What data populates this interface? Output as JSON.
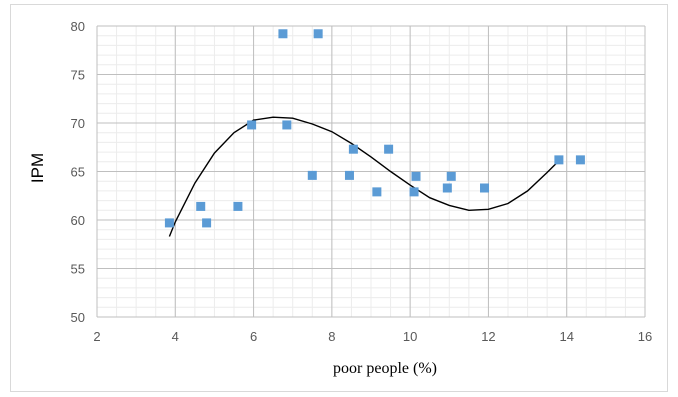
{
  "chart_data": {
    "type": "scatter",
    "title": "",
    "xlabel": "poor people (%)",
    "ylabel": "IPM",
    "xlim": [
      2,
      16
    ],
    "ylim": [
      50,
      80
    ],
    "x_ticks": [
      2,
      4,
      6,
      8,
      10,
      12,
      14,
      16
    ],
    "y_ticks": [
      50,
      55,
      60,
      65,
      70,
      75,
      80
    ],
    "grid": true,
    "legend": "none",
    "marker_color": "#5b9bd5",
    "trendline_color": "#000000",
    "points": [
      {
        "x": 3.85,
        "y": 59.7
      },
      {
        "x": 4.65,
        "y": 61.4
      },
      {
        "x": 4.8,
        "y": 59.7
      },
      {
        "x": 5.6,
        "y": 61.4
      },
      {
        "x": 5.95,
        "y": 69.8
      },
      {
        "x": 6.75,
        "y": 79.2
      },
      {
        "x": 6.85,
        "y": 69.8
      },
      {
        "x": 7.5,
        "y": 64.6
      },
      {
        "x": 7.65,
        "y": 79.2
      },
      {
        "x": 8.45,
        "y": 64.6
      },
      {
        "x": 8.55,
        "y": 67.3
      },
      {
        "x": 9.15,
        "y": 62.9
      },
      {
        "x": 9.45,
        "y": 67.3
      },
      {
        "x": 10.1,
        "y": 62.9
      },
      {
        "x": 10.15,
        "y": 64.5
      },
      {
        "x": 10.95,
        "y": 63.3
      },
      {
        "x": 11.05,
        "y": 64.5
      },
      {
        "x": 11.9,
        "y": 63.3
      },
      {
        "x": 13.8,
        "y": 66.2
      },
      {
        "x": 14.35,
        "y": 66.2
      }
    ],
    "trendline": {
      "type": "polynomial",
      "order": 3,
      "x": [
        3.85,
        4.0,
        4.5,
        5.0,
        5.5,
        6.0,
        6.5,
        7.0,
        7.5,
        8.0,
        8.5,
        9.0,
        9.5,
        10.0,
        10.5,
        11.0,
        11.5,
        12.0,
        12.5,
        13.0,
        13.5,
        13.8
      ],
      "y": [
        58.3,
        59.8,
        63.8,
        66.9,
        69.0,
        70.3,
        70.6,
        70.5,
        69.9,
        69.1,
        67.9,
        66.5,
        65.0,
        63.6,
        62.3,
        61.5,
        61.0,
        61.1,
        61.7,
        63.0,
        64.9,
        66.1
      ]
    }
  }
}
